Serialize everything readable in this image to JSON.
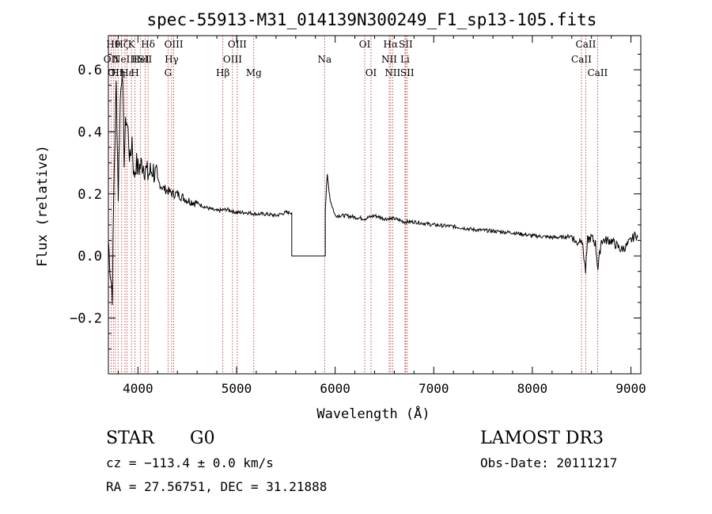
{
  "chart_data": {
    "type": "line",
    "title": "spec-55913-M31_014139N300249_F1_sp13-105.fits",
    "xlabel": "Wavelength (Å)",
    "ylabel": "Flux (relative)",
    "xlim": [
      3700,
      9100
    ],
    "ylim": [
      -0.38,
      0.71
    ],
    "xticks": [
      4000,
      5000,
      6000,
      7000,
      8000,
      9000
    ],
    "yticks": [
      -0.2,
      0.0,
      0.2,
      0.4,
      0.6
    ],
    "ytick_labels": [
      "−0.2",
      "0.0",
      "0.2",
      "0.4",
      "0.6"
    ],
    "series": [
      {
        "name": "flux",
        "x": [
          3700,
          3720,
          3740,
          3760,
          3780,
          3800,
          3820,
          3840,
          3860,
          3880,
          3900,
          3920,
          3940,
          3960,
          3980,
          4000,
          4050,
          4100,
          4150,
          4200,
          4250,
          4300,
          4350,
          4400,
          4450,
          4500,
          4600,
          4700,
          4800,
          4900,
          5000,
          5100,
          5200,
          5300,
          5400,
          5500,
          5560,
          5560,
          5900,
          5900,
          5920,
          5950,
          6000,
          6100,
          6200,
          6300,
          6400,
          6500,
          6600,
          6700,
          6800,
          6900,
          7000,
          7200,
          7400,
          7600,
          7800,
          8000,
          8200,
          8300,
          8400,
          8450,
          8500,
          8540,
          8560,
          8600,
          8640,
          8665,
          8700,
          8800,
          8900,
          8950,
          9000,
          9050,
          9070
        ],
        "y": [
          0.05,
          -0.05,
          -0.12,
          0.3,
          0.55,
          0.2,
          0.5,
          0.62,
          0.32,
          0.45,
          0.4,
          0.3,
          0.38,
          0.25,
          0.3,
          0.28,
          0.3,
          0.26,
          0.28,
          0.24,
          0.22,
          0.21,
          0.2,
          0.2,
          0.19,
          0.18,
          0.17,
          0.155,
          0.145,
          0.15,
          0.14,
          0.14,
          0.135,
          0.135,
          0.13,
          0.14,
          0.14,
          0.0,
          0.0,
          0.15,
          0.26,
          0.18,
          0.13,
          0.13,
          0.125,
          0.12,
          0.13,
          0.12,
          0.12,
          0.11,
          0.11,
          0.105,
          0.1,
          0.095,
          0.085,
          0.08,
          0.075,
          0.065,
          0.06,
          0.06,
          0.065,
          0.04,
          0.06,
          -0.05,
          0.05,
          0.06,
          0.04,
          -0.04,
          0.05,
          0.05,
          0.02,
          0.03,
          0.05,
          0.07,
          0.06
        ]
      }
    ],
    "line_markers": [
      {
        "wl": 3727,
        "label": "OII",
        "row": 1
      },
      {
        "wl": 3750,
        "label": "Hθ",
        "row": 0
      },
      {
        "wl": 3771,
        "label": "OII",
        "row": 2
      },
      {
        "wl": 3798,
        "label": "Hη",
        "row": 2
      },
      {
        "wl": 3835,
        "label": "Hζ",
        "row": 0
      },
      {
        "wl": 3868,
        "label": "NeIII",
        "row": 1
      },
      {
        "wl": 3889,
        "label": "Hε",
        "row": 2
      },
      {
        "wl": 3934,
        "label": "K",
        "row": 0
      },
      {
        "wl": 3970,
        "label": "H",
        "row": 2
      },
      {
        "wl": 4026,
        "label": "HeI",
        "row": 1
      },
      {
        "wl": 4072,
        "label": "SII",
        "row": 1
      },
      {
        "wl": 4102,
        "label": "Hδ",
        "row": 0
      },
      {
        "wl": 4305,
        "label": "G",
        "row": 2
      },
      {
        "wl": 4341,
        "label": "Hγ",
        "row": 1
      },
      {
        "wl": 4363,
        "label": "OIII",
        "row": 0
      },
      {
        "wl": 4861,
        "label": "Hβ",
        "row": 2
      },
      {
        "wl": 4959,
        "label": "OIII",
        "row": 1
      },
      {
        "wl": 5007,
        "label": "OIII",
        "row": 0
      },
      {
        "wl": 5175,
        "label": "Mg",
        "row": 2
      },
      {
        "wl": 5893,
        "label": "Na",
        "row": 1
      },
      {
        "wl": 6300,
        "label": "OI",
        "row": 0
      },
      {
        "wl": 6364,
        "label": "OI",
        "row": 2
      },
      {
        "wl": 6548,
        "label": "NII",
        "row": 1
      },
      {
        "wl": 6563,
        "label": "Hα",
        "row": 0
      },
      {
        "wl": 6583,
        "label": "NII",
        "row": 2
      },
      {
        "wl": 6708,
        "label": "Li",
        "row": 1
      },
      {
        "wl": 6716,
        "label": "SII",
        "row": 0
      },
      {
        "wl": 6731,
        "label": "SII",
        "row": 2
      },
      {
        "wl": 8498,
        "label": "CaII",
        "row": 1
      },
      {
        "wl": 8542,
        "label": "CaII",
        "row": 0
      },
      {
        "wl": 8662,
        "label": "CaII",
        "row": 2
      }
    ]
  },
  "info": {
    "object_type": "STAR",
    "subclass": "G0",
    "survey": "LAMOST DR3",
    "cz": "cz = −113.4 ± 0.0 km/s",
    "obs_date": "Obs-Date: 20111217",
    "coords": "RA =  27.56751, DEC =  31.21888"
  }
}
